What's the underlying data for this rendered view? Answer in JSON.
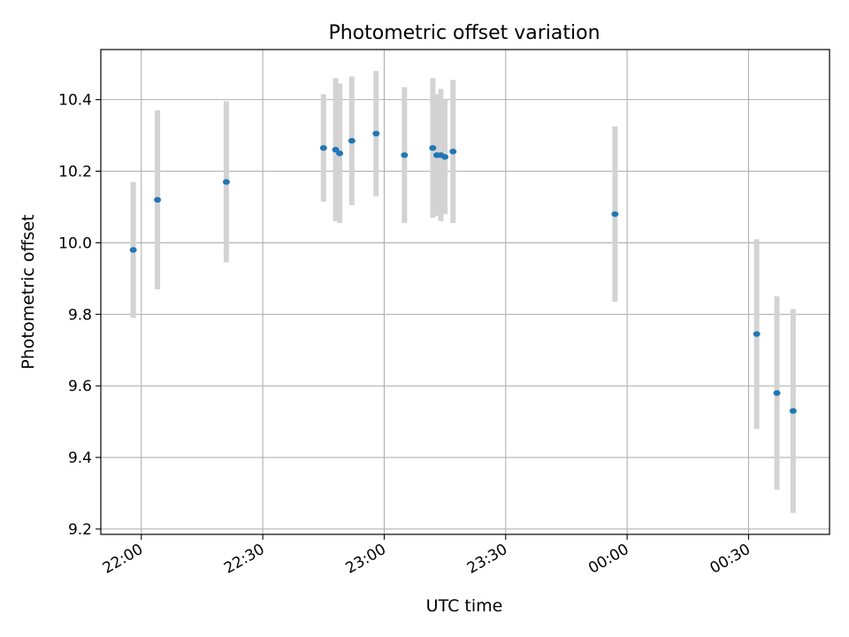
{
  "chart_data": {
    "type": "scatter",
    "title": "Photometric offset variation",
    "xlabel": "UTC time",
    "ylabel": "Photometric offset",
    "x_ticks": [
      "22:00",
      "22:30",
      "23:00",
      "23:30",
      "00:00",
      "00:30"
    ],
    "y_ticks": [
      "9.2",
      "9.4",
      "9.6",
      "9.8",
      "10.0",
      "10.2",
      "10.4"
    ],
    "xlim": [
      "21:50",
      "00:50"
    ],
    "ylim": [
      9.185,
      10.54
    ],
    "grid": true,
    "colors": {
      "marker": "#1f77b4",
      "errorbar": "#d3d3d3",
      "grid": "#b0b0b0"
    },
    "series": [
      {
        "points": [
          {
            "x": "21:58",
            "y": 9.98,
            "err": 0.19
          },
          {
            "x": "22:04",
            "y": 10.12,
            "err": 0.25
          },
          {
            "x": "22:21",
            "y": 10.17,
            "err": 0.225
          },
          {
            "x": "22:45",
            "y": 10.265,
            "err": 0.15
          },
          {
            "x": "22:48",
            "y": 10.26,
            "err": 0.2
          },
          {
            "x": "22:49",
            "y": 10.25,
            "err": 0.195
          },
          {
            "x": "22:52",
            "y": 10.285,
            "err": 0.18
          },
          {
            "x": "22:58",
            "y": 10.305,
            "err": 0.175
          },
          {
            "x": "23:05",
            "y": 10.245,
            "err": 0.19
          },
          {
            "x": "23:12",
            "y": 10.265,
            "err": 0.195
          },
          {
            "x": "23:13",
            "y": 10.245,
            "err": 0.17
          },
          {
            "x": "23:14",
            "y": 10.245,
            "err": 0.185
          },
          {
            "x": "23:15",
            "y": 10.24,
            "err": 0.16
          },
          {
            "x": "23:17",
            "y": 10.255,
            "err": 0.2
          },
          {
            "x": "23:57",
            "y": 10.08,
            "err": 0.245
          },
          {
            "x": "00:32",
            "y": 9.745,
            "err": 0.265
          },
          {
            "x": "00:37",
            "y": 9.58,
            "err": 0.27
          },
          {
            "x": "00:41",
            "y": 9.53,
            "err": 0.285
          }
        ]
      }
    ]
  }
}
